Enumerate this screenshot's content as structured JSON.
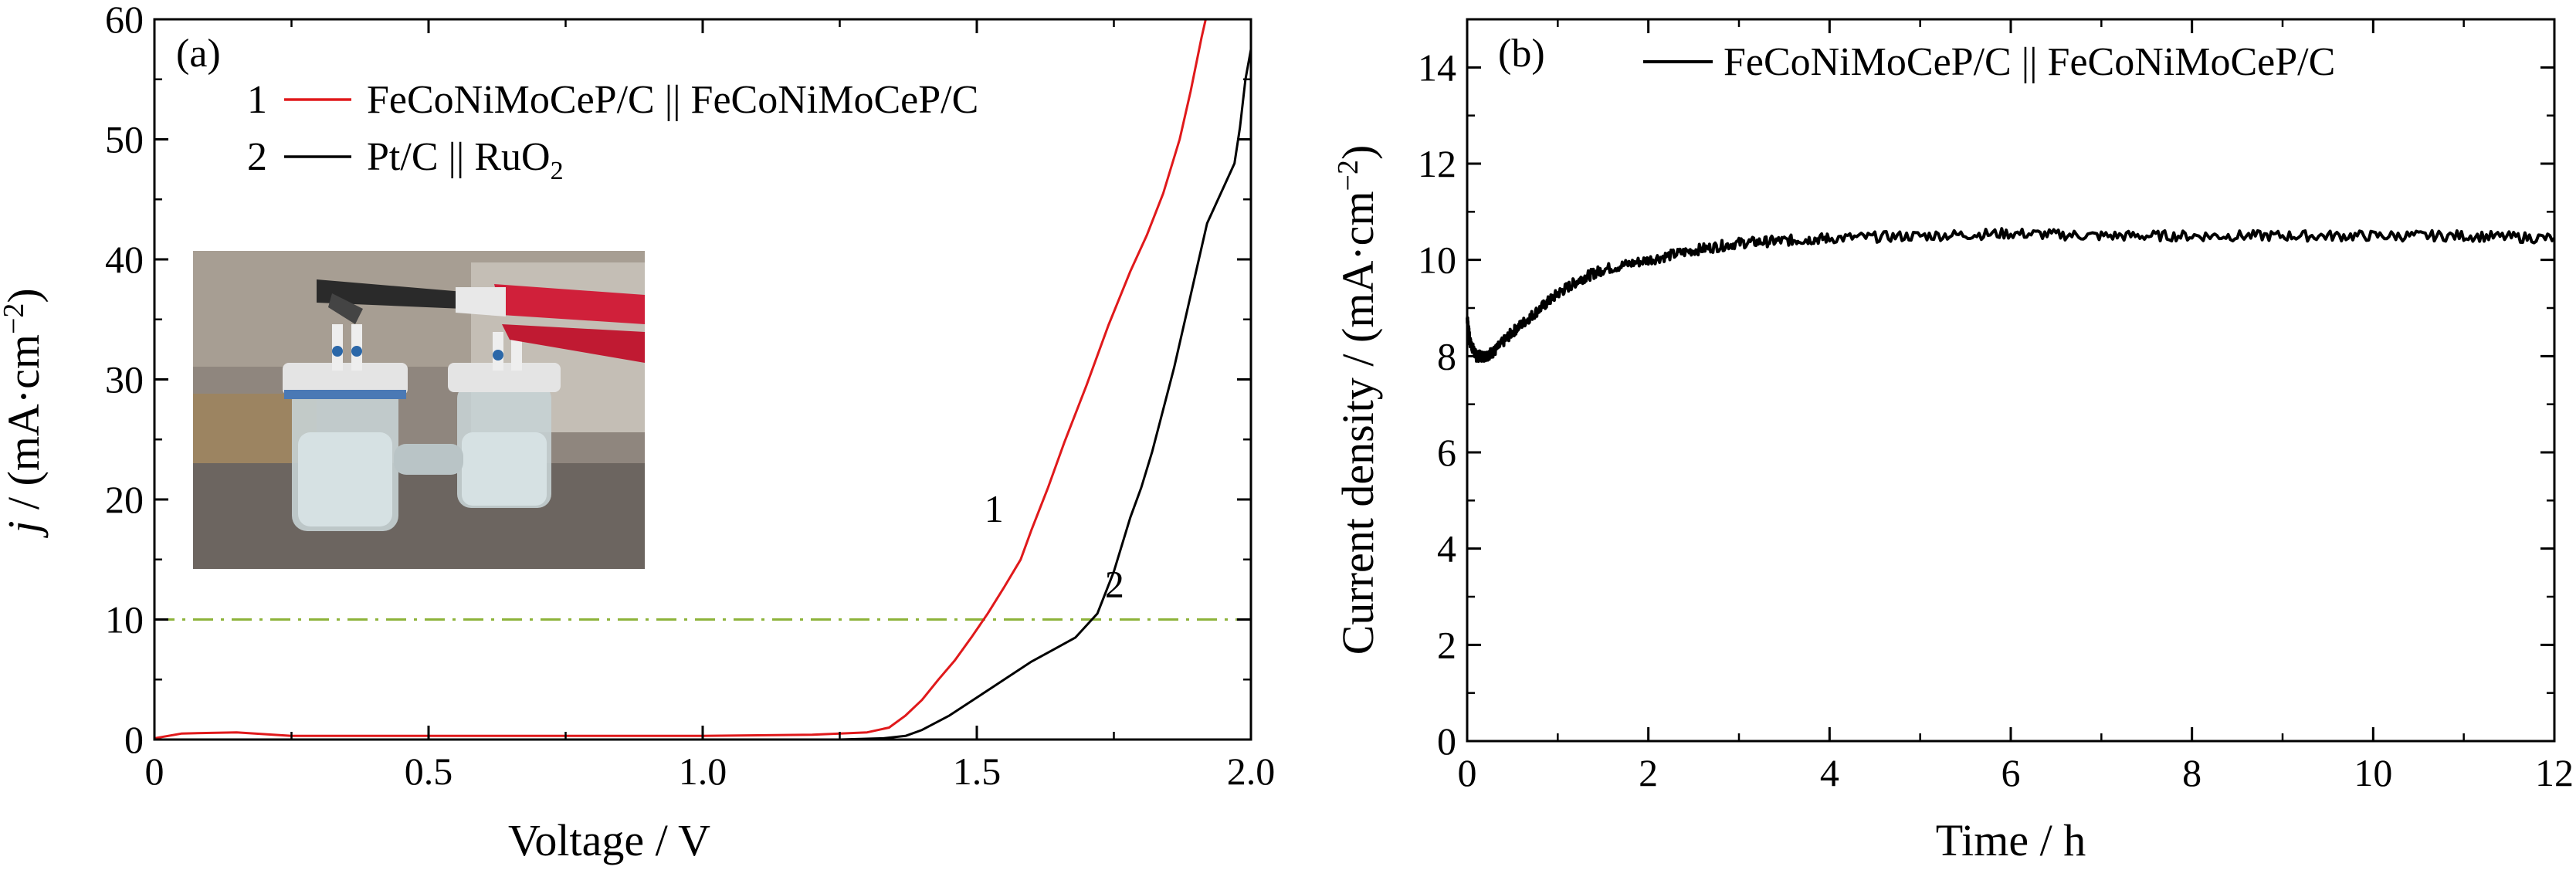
{
  "chart_data": [
    {
      "panel": "(a)",
      "type": "line",
      "xlabel": "Voltage / V",
      "ylabel": "j / (mA·cm⁻²)",
      "ylabel_italic_part": "j",
      "ylabel_rest": " / (mA·cm",
      "ylabel_sup": "−2",
      "ylabel_end": ")",
      "xlim": [
        0,
        2.0
      ],
      "ylim": [
        0,
        60
      ],
      "xticks": [
        "0",
        "0.5",
        "1.0",
        "1.5",
        "2.0"
      ],
      "xtick_values": [
        0,
        0.5,
        1.0,
        1.5,
        2.0
      ],
      "yticks": [
        "0",
        "10",
        "20",
        "30",
        "40",
        "50",
        "60"
      ],
      "ytick_values": [
        0,
        10,
        20,
        30,
        40,
        50,
        60
      ],
      "legend_placement": "top-left",
      "inset": "photograph of two sealed glass electrolysis cells with red and black clips",
      "reference_line": {
        "y": 10,
        "color": "#8db33a",
        "style": "dash-dot"
      },
      "series": [
        {
          "name": "FeCoNiMoCeP/C || FeCoNiMoCeP/C",
          "legend_number": "1",
          "legend_label": "FeCoNiMoCeP/C || FeCoNiMoCeP/C",
          "curve_label": "1",
          "curve_label_at": [
            1.57,
            17.5
          ],
          "color": "#e0191b",
          "x": [
            0,
            0.05,
            0.15,
            0.25,
            0.5,
            0.75,
            1.0,
            1.2,
            1.3,
            1.34,
            1.37,
            1.4,
            1.43,
            1.46,
            1.49,
            1.52,
            1.55,
            1.58,
            1.6,
            1.63,
            1.66,
            1.7,
            1.74,
            1.78,
            1.81,
            1.84,
            1.87,
            1.89,
            1.91,
            1.92
          ],
          "y": [
            0.1,
            0.5,
            0.6,
            0.3,
            0.3,
            0.3,
            0.3,
            0.4,
            0.6,
            1.0,
            2.0,
            3.3,
            5.0,
            6.6,
            8.5,
            10.5,
            12.7,
            15.0,
            17.5,
            21.0,
            24.8,
            29.5,
            34.5,
            39.0,
            42.0,
            45.5,
            50.0,
            54.0,
            58.5,
            61.0
          ]
        },
        {
          "name": "Pt/C || RuO₂",
          "legend_number": "2",
          "legend_label_main": "Pt/C || RuO",
          "legend_label_sub": "2",
          "curve_label": "2",
          "curve_label_at": [
            1.79,
            12.5
          ],
          "color": "#000000",
          "x": [
            0,
            0.1,
            0.2,
            0.5,
            0.75,
            1.0,
            1.25,
            1.33,
            1.37,
            1.4,
            1.45,
            1.5,
            1.55,
            1.6,
            1.64,
            1.68,
            1.72,
            1.75,
            1.78,
            1.8,
            1.82,
            1.84,
            1.86,
            1.88,
            1.9,
            1.92,
            1.95,
            1.97,
            1.98,
            1.99,
            2.0
          ],
          "y": [
            0.0,
            -0.1,
            -0.1,
            -0.2,
            -0.2,
            -0.1,
            0.0,
            0.1,
            0.3,
            0.8,
            2.0,
            3.5,
            5.0,
            6.5,
            7.5,
            8.5,
            10.5,
            14.0,
            18.5,
            21.0,
            24.0,
            27.5,
            31.0,
            35.0,
            39.0,
            43.0,
            46.0,
            48.0,
            51.0,
            55.0,
            57.5
          ]
        }
      ]
    },
    {
      "panel": "(b)",
      "type": "line",
      "xlabel": "Time / h",
      "ylabel": "Current density / (mA·cm⁻²)",
      "ylabel_rest": "Current density / (mA·cm",
      "ylabel_sup": "−2",
      "ylabel_end": ")",
      "xlim": [
        0,
        12
      ],
      "ylim": [
        0,
        15
      ],
      "xticks": [
        "0",
        "2",
        "4",
        "6",
        "8",
        "10",
        "12"
      ],
      "xtick_values": [
        0,
        2,
        4,
        6,
        8,
        10,
        12
      ],
      "yticks": [
        "0",
        "2",
        "4",
        "6",
        "8",
        "10",
        "12",
        "14"
      ],
      "ytick_values": [
        0,
        2,
        4,
        6,
        8,
        10,
        12,
        14
      ],
      "legend_placement": "top-right",
      "series": [
        {
          "name": "FeCoNiMoCeP/C || FeCoNiMoCeP/C",
          "legend_label": "FeCoNiMoCeP/C || FeCoNiMoCeP/C",
          "color": "#000000",
          "x": [
            0,
            0.03,
            0.1,
            0.2,
            0.3,
            0.5,
            0.75,
            1.0,
            1.25,
            1.5,
            2.0,
            2.5,
            3.0,
            3.5,
            4.0,
            5.0,
            6.0,
            7.0,
            8.0,
            9.0,
            10.0,
            11.0,
            12.0
          ],
          "y": [
            8.8,
            8.3,
            8.0,
            8.0,
            8.1,
            8.5,
            8.9,
            9.3,
            9.6,
            9.8,
            10.0,
            10.2,
            10.35,
            10.4,
            10.45,
            10.5,
            10.55,
            10.5,
            10.5,
            10.5,
            10.5,
            10.5,
            10.45
          ]
        }
      ]
    }
  ]
}
